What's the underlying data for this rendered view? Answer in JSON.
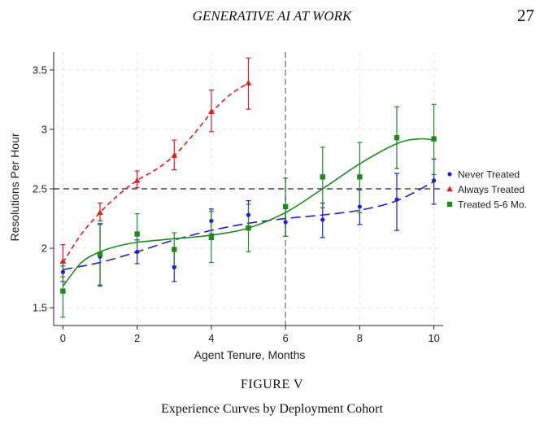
{
  "page": {
    "running_head": "GENERATIVE AI AT WORK",
    "page_number": "27",
    "figure_label": "FIGURE V",
    "figure_caption": "Experience Curves by Deployment Cohort"
  },
  "colors": {
    "never": "#1f1fd6",
    "always": "#e41a1c",
    "treated": "#1f8a1f",
    "reference": "#222222",
    "vline": "#999999",
    "grid": "#e6e6e6"
  },
  "chart_data": {
    "type": "scatter",
    "title": "",
    "xlabel": "Agent Tenure, Months",
    "ylabel": "Resolutions Per Hour",
    "xlim": [
      -0.25,
      10.25
    ],
    "ylim": [
      1.35,
      3.65
    ],
    "xticks": [
      0,
      2,
      4,
      6,
      8,
      10
    ],
    "yticks": [
      1.5,
      2,
      2.5,
      3,
      3.5
    ],
    "xtick_labels": [
      "0",
      "2",
      "4",
      "6",
      "8",
      "10"
    ],
    "ytick_labels": [
      "1.5",
      "2",
      "2.5",
      "3",
      "3.5"
    ],
    "grid": true,
    "legend_position": "right",
    "reference_hline": 2.5,
    "reference_vline": 6,
    "series": [
      {
        "name": "Never Treated",
        "key": "never",
        "marker": "circle",
        "points": [
          {
            "x": 0,
            "y": 1.8,
            "lo": 1.72,
            "hi": 1.88
          },
          {
            "x": 1,
            "y": 1.93,
            "lo": 1.69,
            "hi": 2.2
          },
          {
            "x": 2,
            "y": 1.97,
            "lo": 1.87,
            "hi": 2.07
          },
          {
            "x": 3,
            "y": 1.84,
            "lo": 1.72,
            "hi": 1.98
          },
          {
            "x": 4,
            "y": 2.23,
            "lo": 2.12,
            "hi": 2.33
          },
          {
            "x": 5,
            "y": 2.28,
            "lo": 2.16,
            "hi": 2.4
          },
          {
            "x": 6,
            "y": 2.22,
            "lo": 2.1,
            "hi": 2.35
          },
          {
            "x": 7,
            "y": 2.24,
            "lo": 2.09,
            "hi": 2.38
          },
          {
            "x": 8,
            "y": 2.35,
            "lo": 2.2,
            "hi": 2.49
          },
          {
            "x": 9,
            "y": 2.41,
            "lo": 2.15,
            "hi": 2.63
          },
          {
            "x": 10,
            "y": 2.57,
            "lo": 2.37,
            "hi": 2.75
          }
        ],
        "fit": [
          {
            "x": 0,
            "y": 1.82
          },
          {
            "x": 1,
            "y": 1.88
          },
          {
            "x": 2,
            "y": 1.97
          },
          {
            "x": 3,
            "y": 2.07
          },
          {
            "x": 4,
            "y": 2.15
          },
          {
            "x": 5,
            "y": 2.21
          },
          {
            "x": 6,
            "y": 2.25
          },
          {
            "x": 7,
            "y": 2.28
          },
          {
            "x": 8,
            "y": 2.32
          },
          {
            "x": 9,
            "y": 2.4
          },
          {
            "x": 10,
            "y": 2.56
          }
        ]
      },
      {
        "name": "Always Treated",
        "key": "always",
        "marker": "triangle",
        "points": [
          {
            "x": 0,
            "y": 1.89,
            "lo": 1.76,
            "hi": 2.03
          },
          {
            "x": 1,
            "y": 2.3,
            "lo": 2.23,
            "hi": 2.38
          },
          {
            "x": 2,
            "y": 2.57,
            "lo": 2.51,
            "hi": 2.65
          },
          {
            "x": 3,
            "y": 2.78,
            "lo": 2.66,
            "hi": 2.91
          },
          {
            "x": 4,
            "y": 3.15,
            "lo": 2.98,
            "hi": 3.33
          },
          {
            "x": 5,
            "y": 3.39,
            "lo": 3.17,
            "hi": 3.6
          }
        ],
        "fit": [
          {
            "x": 0,
            "y": 1.88
          },
          {
            "x": 0.5,
            "y": 2.12
          },
          {
            "x": 1,
            "y": 2.3
          },
          {
            "x": 1.5,
            "y": 2.45
          },
          {
            "x": 2,
            "y": 2.57
          },
          {
            "x": 2.5,
            "y": 2.66
          },
          {
            "x": 3,
            "y": 2.78
          },
          {
            "x": 3.5,
            "y": 2.95
          },
          {
            "x": 4,
            "y": 3.14
          },
          {
            "x": 4.5,
            "y": 3.29
          },
          {
            "x": 5,
            "y": 3.39
          }
        ]
      },
      {
        "name": "Treated 5-6 Mo.",
        "key": "treated",
        "marker": "square",
        "points": [
          {
            "x": 0,
            "y": 1.64,
            "lo": 1.42,
            "hi": 1.85
          },
          {
            "x": 1,
            "y": 1.95,
            "lo": 1.68,
            "hi": 2.21
          },
          {
            "x": 2,
            "y": 2.12,
            "lo": 1.96,
            "hi": 2.29
          },
          {
            "x": 3,
            "y": 1.99,
            "lo": 1.85,
            "hi": 2.13
          },
          {
            "x": 4,
            "y": 2.09,
            "lo": 1.88,
            "hi": 2.31
          },
          {
            "x": 5,
            "y": 2.17,
            "lo": 1.97,
            "hi": 2.37
          },
          {
            "x": 6,
            "y": 2.35,
            "lo": 2.1,
            "hi": 2.59
          },
          {
            "x": 7,
            "y": 2.6,
            "lo": 2.34,
            "hi": 2.85
          },
          {
            "x": 8,
            "y": 2.6,
            "lo": 2.3,
            "hi": 2.89
          },
          {
            "x": 9,
            "y": 2.93,
            "lo": 2.67,
            "hi": 3.19
          },
          {
            "x": 10,
            "y": 2.92,
            "lo": 2.62,
            "hi": 3.21
          }
        ],
        "fit": [
          {
            "x": 0,
            "y": 1.68
          },
          {
            "x": 0.5,
            "y": 1.88
          },
          {
            "x": 1,
            "y": 1.97
          },
          {
            "x": 1.5,
            "y": 2.02
          },
          {
            "x": 2,
            "y": 2.05
          },
          {
            "x": 3,
            "y": 2.08
          },
          {
            "x": 4,
            "y": 2.11
          },
          {
            "x": 5,
            "y": 2.17
          },
          {
            "x": 6,
            "y": 2.3
          },
          {
            "x": 7,
            "y": 2.5
          },
          {
            "x": 8,
            "y": 2.71
          },
          {
            "x": 9,
            "y": 2.88
          },
          {
            "x": 9.6,
            "y": 2.92
          },
          {
            "x": 10,
            "y": 2.91
          }
        ]
      }
    ]
  }
}
